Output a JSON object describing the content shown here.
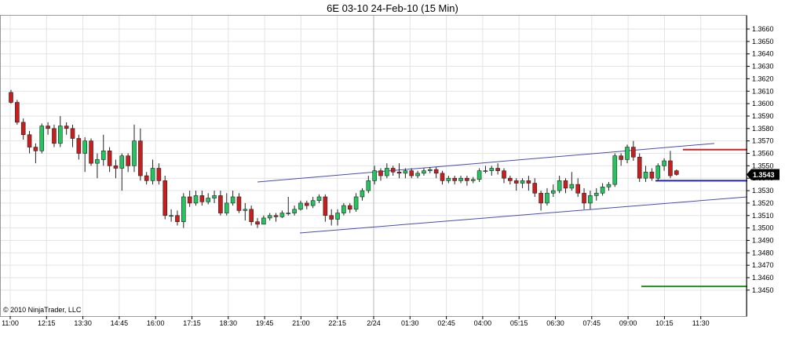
{
  "title": "6E 03-10  24-Feb-10 (15 Min)",
  "copyright": "© 2010 NinjaTrader, LLC",
  "colors": {
    "up": "#22c55e",
    "down": "#c81e1e",
    "channel": "#4a4ab8",
    "level_red": "#d02020",
    "level_blue": "#1f1fc8",
    "level_green": "#1f8f1f",
    "grid": "#e3e3e3",
    "last_price_bg": "#000000"
  },
  "chart_data": {
    "type": "candlestick",
    "timeframe": "15 Min",
    "grid": true,
    "ylim": [
      1.3443,
      1.367
    ],
    "y_ticks": [
      "1.3450",
      "1.3460",
      "1.3470",
      "1.3480",
      "1.3490",
      "1.3500",
      "1.3510",
      "1.3520",
      "1.3530",
      "1.3540",
      "1.3550",
      "1.3560",
      "1.3570",
      "1.3580",
      "1.3590",
      "1.3600",
      "1.3610",
      "1.3620",
      "1.3630",
      "1.3640",
      "1.3650",
      "1.3660"
    ],
    "x_ticks": [
      "11:00",
      "12:15",
      "13:30",
      "14:45",
      "16:00",
      "17:15",
      "18:30",
      "19:45",
      "21:00",
      "22:15",
      "2/24",
      "01:30",
      "02:45",
      "04:00",
      "05:15",
      "06:30",
      "07:45",
      "09:00",
      "10:15",
      "11:30"
    ],
    "last_price": "1.3543",
    "candles": [
      [
        1.3609,
        1.3601,
        1.3611,
        1.36
      ],
      [
        1.3601,
        1.3585,
        1.3603,
        1.3583
      ],
      [
        1.3585,
        1.3575,
        1.3588,
        1.3571
      ],
      [
        1.3575,
        1.3565,
        1.3578,
        1.356
      ],
      [
        1.3565,
        1.3562,
        1.3568,
        1.3552
      ],
      [
        1.3562,
        1.3582,
        1.3584,
        1.356
      ],
      [
        1.3582,
        1.358,
        1.3585,
        1.3575
      ],
      [
        1.358,
        1.3568,
        1.3583,
        1.3565
      ],
      [
        1.3568,
        1.3582,
        1.359,
        1.3565
      ],
      [
        1.3582,
        1.358,
        1.3585,
        1.3575
      ],
      [
        1.358,
        1.3572,
        1.3583,
        1.3565
      ],
      [
        1.3572,
        1.356,
        1.3575,
        1.3555
      ],
      [
        1.356,
        1.357,
        1.3573,
        1.3545
      ],
      [
        1.357,
        1.3552,
        1.3572,
        1.355
      ],
      [
        1.3552,
        1.3555,
        1.356,
        1.354
      ],
      [
        1.3555,
        1.3562,
        1.3575,
        1.355
      ],
      [
        1.3562,
        1.355,
        1.3565,
        1.3545
      ],
      [
        1.355,
        1.3548,
        1.3555,
        1.354
      ],
      [
        1.3548,
        1.3558,
        1.356,
        1.353
      ],
      [
        1.3558,
        1.355,
        1.356,
        1.3545
      ],
      [
        1.355,
        1.357,
        1.3583,
        1.3545
      ],
      [
        1.357,
        1.3542,
        1.358,
        1.3538
      ],
      [
        1.3542,
        1.3538,
        1.3545,
        1.3535
      ],
      [
        1.3538,
        1.3548,
        1.3555,
        1.3535
      ],
      [
        1.3548,
        1.3538,
        1.3552,
        1.3535
      ],
      [
        1.3538,
        1.351,
        1.3542,
        1.3507
      ],
      [
        1.351,
        1.351,
        1.3515,
        1.3505
      ],
      [
        1.351,
        1.3505,
        1.3514,
        1.3502
      ],
      [
        1.3505,
        1.3525,
        1.3528,
        1.35
      ],
      [
        1.3525,
        1.352,
        1.353,
        1.3517
      ],
      [
        1.352,
        1.3526,
        1.353,
        1.3518
      ],
      [
        1.3526,
        1.3521,
        1.353,
        1.3518
      ],
      [
        1.3521,
        1.3524,
        1.3528,
        1.3519
      ],
      [
        1.3524,
        1.3526,
        1.353,
        1.352
      ],
      [
        1.3526,
        1.3512,
        1.353,
        1.351
      ],
      [
        1.3512,
        1.352,
        1.3528,
        1.351
      ],
      [
        1.352,
        1.3525,
        1.353,
        1.3518
      ],
      [
        1.3525,
        1.3514,
        1.3528,
        1.3512
      ],
      [
        1.3514,
        1.3515,
        1.352,
        1.3506
      ],
      [
        1.3515,
        1.3505,
        1.3518,
        1.3502
      ],
      [
        1.3505,
        1.3503,
        1.3508,
        1.35
      ],
      [
        1.3503,
        1.3508,
        1.351,
        1.3503
      ],
      [
        1.3508,
        1.351,
        1.3512,
        1.3506
      ],
      [
        1.351,
        1.3509,
        1.3512,
        1.3505
      ],
      [
        1.3509,
        1.3512,
        1.3514,
        1.3508
      ],
      [
        1.3512,
        1.3512,
        1.3525,
        1.351
      ],
      [
        1.3512,
        1.3515,
        1.3518,
        1.351
      ],
      [
        1.3515,
        1.352,
        1.3522,
        1.3514
      ],
      [
        1.352,
        1.3518,
        1.3522,
        1.3515
      ],
      [
        1.3518,
        1.3522,
        1.3525,
        1.3516
      ],
      [
        1.3522,
        1.3525,
        1.3527,
        1.352
      ],
      [
        1.3525,
        1.351,
        1.3527,
        1.3505
      ],
      [
        1.351,
        1.3507,
        1.3515,
        1.3502
      ],
      [
        1.3507,
        1.3512,
        1.3515,
        1.3502
      ],
      [
        1.3512,
        1.3518,
        1.352,
        1.351
      ],
      [
        1.3518,
        1.3515,
        1.352,
        1.3512
      ],
      [
        1.3515,
        1.3525,
        1.3528,
        1.3513
      ],
      [
        1.3525,
        1.353,
        1.3532,
        1.3522
      ],
      [
        1.353,
        1.3538,
        1.3542,
        1.3528
      ],
      [
        1.3538,
        1.3546,
        1.355,
        1.3535
      ],
      [
        1.3546,
        1.3542,
        1.3548,
        1.3538
      ],
      [
        1.3542,
        1.3548,
        1.3552,
        1.354
      ],
      [
        1.3548,
        1.3545,
        1.355,
        1.3542
      ],
      [
        1.3545,
        1.3544,
        1.3552,
        1.354
      ],
      [
        1.3544,
        1.3546,
        1.3548,
        1.354
      ],
      [
        1.3546,
        1.3542,
        1.3548,
        1.354
      ],
      [
        1.3542,
        1.3544,
        1.3546,
        1.354
      ],
      [
        1.3544,
        1.3546,
        1.3548,
        1.3542
      ],
      [
        1.3546,
        1.3547,
        1.3549,
        1.3544
      ],
      [
        1.3547,
        1.3544,
        1.3549,
        1.354
      ],
      [
        1.3544,
        1.3538,
        1.3546,
        1.3535
      ],
      [
        1.3538,
        1.354,
        1.3542,
        1.3536
      ],
      [
        1.354,
        1.3538,
        1.3542,
        1.3535
      ],
      [
        1.3538,
        1.354,
        1.3542,
        1.3536
      ],
      [
        1.354,
        1.3538,
        1.3542,
        1.3534
      ],
      [
        1.3538,
        1.3539,
        1.3541,
        1.3536
      ],
      [
        1.3539,
        1.3546,
        1.3548,
        1.3537
      ],
      [
        1.3546,
        1.3546,
        1.355,
        1.3544
      ],
      [
        1.3546,
        1.3548,
        1.355,
        1.3542
      ],
      [
        1.3548,
        1.3546,
        1.3552,
        1.3543
      ],
      [
        1.3546,
        1.354,
        1.3548,
        1.3536
      ],
      [
        1.354,
        1.3538,
        1.3542,
        1.3535
      ],
      [
        1.3538,
        1.3536,
        1.354,
        1.353
      ],
      [
        1.3536,
        1.3538,
        1.354,
        1.3532
      ],
      [
        1.3538,
        1.3536,
        1.3542,
        1.353
      ],
      [
        1.3536,
        1.3528,
        1.354,
        1.3525
      ],
      [
        1.3528,
        1.352,
        1.353,
        1.3514
      ],
      [
        1.352,
        1.3528,
        1.3532,
        1.3518
      ],
      [
        1.3528,
        1.353,
        1.3535,
        1.3525
      ],
      [
        1.353,
        1.3538,
        1.3542,
        1.3528
      ],
      [
        1.3538,
        1.3532,
        1.354,
        1.3528
      ],
      [
        1.3532,
        1.3535,
        1.3545,
        1.353
      ],
      [
        1.3535,
        1.3528,
        1.354,
        1.3525
      ],
      [
        1.3528,
        1.352,
        1.3532,
        1.3515
      ],
      [
        1.352,
        1.3526,
        1.353,
        1.3515
      ],
      [
        1.3526,
        1.3528,
        1.3532,
        1.3522
      ],
      [
        1.3528,
        1.3533,
        1.3536,
        1.3526
      ],
      [
        1.3533,
        1.3535,
        1.3537,
        1.353
      ],
      [
        1.3535,
        1.3558,
        1.356,
        1.3533
      ],
      [
        1.3558,
        1.3555,
        1.356,
        1.355
      ],
      [
        1.3555,
        1.3565,
        1.3567,
        1.3552
      ],
      [
        1.3565,
        1.3557,
        1.357,
        1.3554
      ],
      [
        1.3557,
        1.354,
        1.356,
        1.3537
      ],
      [
        1.354,
        1.3545,
        1.355,
        1.3537
      ],
      [
        1.3545,
        1.354,
        1.3548,
        1.3538
      ],
      [
        1.354,
        1.355,
        1.3552,
        1.3538
      ],
      [
        1.355,
        1.3554,
        1.3556,
        1.3546
      ],
      [
        1.3554,
        1.3542,
        1.3562,
        1.354
      ],
      [
        1.3546,
        1.3543,
        1.3547,
        1.3542
      ]
    ],
    "channel_upper": [
      [
        1.3537,
        1.3568
      ]
    ],
    "channel_lower": [
      [
        1.3496,
        1.3525
      ]
    ],
    "levels": [
      {
        "price": 1.3563,
        "color": "level_red"
      },
      {
        "price": 1.3538,
        "color": "level_blue"
      },
      {
        "price": 1.3453,
        "color": "level_green"
      }
    ]
  }
}
